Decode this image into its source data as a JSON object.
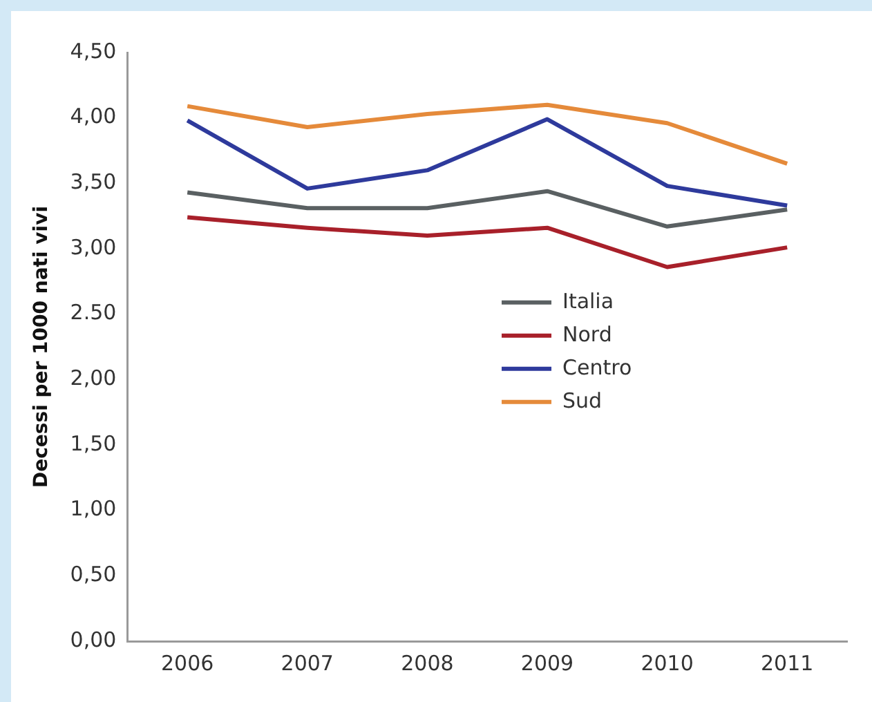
{
  "chart_data": {
    "type": "line",
    "ylabel": "Decessi per 1000 nati vivi",
    "categories": [
      "2006",
      "2007",
      "2008",
      "2009",
      "2010",
      "2011"
    ],
    "series": [
      {
        "name": "Italia",
        "color": "#5a6062",
        "values": [
          3.43,
          3.31,
          3.31,
          3.44,
          3.17,
          3.3
        ]
      },
      {
        "name": "Nord",
        "color": "#a8202a",
        "values": [
          3.24,
          3.16,
          3.1,
          3.16,
          2.86,
          3.01
        ]
      },
      {
        "name": "Centro",
        "color": "#2e3a9c",
        "values": [
          3.98,
          3.46,
          3.6,
          3.99,
          3.48,
          3.33
        ]
      },
      {
        "name": "Sud",
        "color": "#e58a3a",
        "values": [
          4.09,
          3.93,
          4.03,
          4.1,
          3.96,
          3.65
        ]
      }
    ],
    "ylim": [
      0,
      4.5
    ],
    "yticks": [
      {
        "value": 0,
        "label": "0,00"
      },
      {
        "value": 0.5,
        "label": "0,50"
      },
      {
        "value": 1,
        "label": "1,00"
      },
      {
        "value": 1.5,
        "label": "1,50"
      },
      {
        "value": 2,
        "label": "2,00"
      },
      {
        "value": 2.5,
        "label": "2.50"
      },
      {
        "value": 3,
        "label": "3,00"
      },
      {
        "value": 3.5,
        "label": "3,50"
      },
      {
        "value": 4,
        "label": "4,00"
      },
      {
        "value": 4.5,
        "label": "4,50"
      }
    ],
    "grid": false,
    "legend": "bottom right",
    "marker": "none",
    "line_style": "solid"
  }
}
